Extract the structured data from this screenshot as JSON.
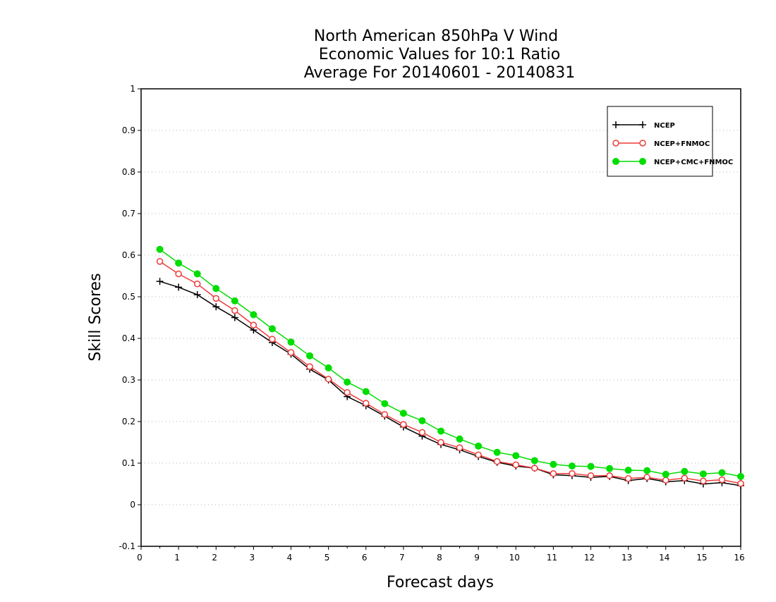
{
  "chart_data": {
    "type": "line",
    "title_lines": [
      "North American 850hPa V Wind",
      "Economic Values for 10:1 Ratio",
      "Average For 20140601 - 20140831"
    ],
    "xlabel": "Forecast days",
    "ylabel": "Skill Scores",
    "xlim": [
      0,
      16
    ],
    "ylim": [
      -0.1,
      1
    ],
    "x_ticks": [
      0,
      1,
      2,
      3,
      4,
      5,
      6,
      7,
      8,
      9,
      10,
      11,
      12,
      13,
      14,
      15,
      16
    ],
    "y_ticks": [
      -0.1,
      0,
      0.1,
      0.2,
      0.3,
      0.4,
      0.5,
      0.6,
      0.7,
      0.8,
      0.9,
      1
    ],
    "y_tick_labels": [
      "-0.1",
      "0",
      "0.1",
      "0.2",
      "0.3",
      "0.4",
      "0.5",
      "0.6",
      "0.7",
      "0.8",
      "0.9",
      "1"
    ],
    "grid": true,
    "legend_position": "top-right",
    "x": [
      0.5,
      1,
      1.5,
      2,
      2.5,
      3,
      3.5,
      4,
      4.5,
      5,
      5.5,
      6,
      6.5,
      7,
      7.5,
      8,
      8.5,
      9,
      9.5,
      10,
      10.5,
      11,
      11.5,
      12,
      12.5,
      13,
      13.5,
      14,
      14.5,
      15,
      15.5,
      16
    ],
    "series": [
      {
        "name": "NCEP",
        "color": "#000000",
        "marker": "plus",
        "values": [
          0.537,
          0.523,
          0.505,
          0.476,
          0.45,
          0.42,
          0.39,
          0.362,
          0.326,
          0.3,
          0.26,
          0.238,
          0.213,
          0.187,
          0.165,
          0.145,
          0.132,
          0.116,
          0.102,
          0.093,
          0.088,
          0.072,
          0.07,
          0.066,
          0.068,
          0.058,
          0.063,
          0.055,
          0.058,
          0.05,
          0.053,
          0.046
        ]
      },
      {
        "name": "NCEP+FNMOC",
        "color": "#ee3b3b",
        "marker": "open-circle",
        "values": [
          0.585,
          0.555,
          0.531,
          0.496,
          0.467,
          0.432,
          0.398,
          0.366,
          0.332,
          0.302,
          0.27,
          0.244,
          0.217,
          0.193,
          0.174,
          0.15,
          0.137,
          0.12,
          0.104,
          0.096,
          0.088,
          0.075,
          0.075,
          0.07,
          0.07,
          0.063,
          0.066,
          0.059,
          0.064,
          0.057,
          0.06,
          0.051
        ]
      },
      {
        "name": "NCEP+CMC+FNMOC",
        "color": "#00dd00",
        "marker": "filled-circle",
        "values": [
          0.614,
          0.581,
          0.555,
          0.52,
          0.49,
          0.457,
          0.423,
          0.391,
          0.358,
          0.329,
          0.295,
          0.272,
          0.243,
          0.22,
          0.202,
          0.177,
          0.158,
          0.141,
          0.126,
          0.118,
          0.106,
          0.097,
          0.093,
          0.092,
          0.087,
          0.083,
          0.082,
          0.073,
          0.08,
          0.074,
          0.077,
          0.068
        ]
      }
    ]
  }
}
